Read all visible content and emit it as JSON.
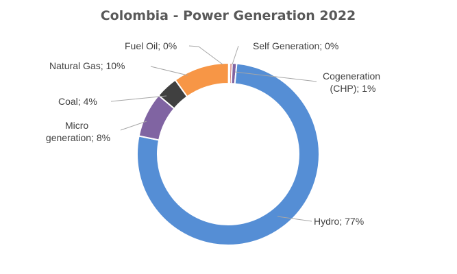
{
  "chart_data": {
    "type": "pie",
    "variant": "doughnut",
    "title": "Colombia - Power Generation 2022",
    "legend": "none",
    "slices": [
      {
        "label": "Self Generation",
        "value": 0.4,
        "display": "Self Generation;  0%",
        "color": "#c0504d"
      },
      {
        "label": "Cogeneration (CHP)",
        "value": 0.8,
        "display": "Cogeneration (CHP); 1%",
        "color": "#8064a2"
      },
      {
        "label": "Hydro",
        "value": 77,
        "display": "Hydro; 77%",
        "color": "#558ed5"
      },
      {
        "label": "Micro generation",
        "value": 8,
        "display": "Micro generation; 8%",
        "color": "#8064a2"
      },
      {
        "label": "Coal",
        "value": 4,
        "display": "Coal; 4%",
        "color": "#404040"
      },
      {
        "label": "Natural Gas",
        "value": 10,
        "display": "Natural  Gas; 10%",
        "color": "#f79646"
      },
      {
        "label": "Fuel Oil",
        "value": 0.2,
        "display": "Fuel Oil; 0%",
        "color": "#4f81bd"
      }
    ]
  }
}
